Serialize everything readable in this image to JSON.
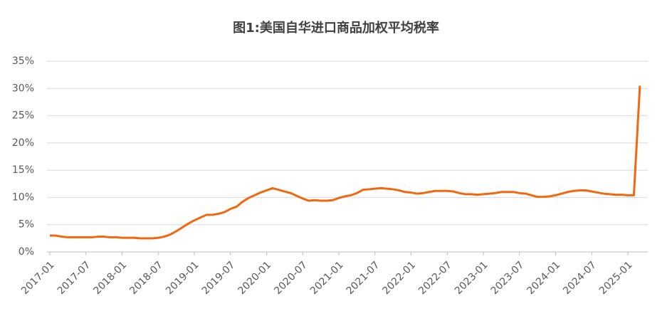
{
  "chart_data": {
    "type": "line",
    "title": "图1:美国自华进口商品加权平均税率",
    "x": [
      "2017-01",
      "2017-02",
      "2017-03",
      "2017-04",
      "2017-05",
      "2017-06",
      "2017-07",
      "2017-08",
      "2017-09",
      "2017-10",
      "2017-11",
      "2017-12",
      "2018-01",
      "2018-02",
      "2018-03",
      "2018-04",
      "2018-05",
      "2018-06",
      "2018-07",
      "2018-08",
      "2018-09",
      "2018-10",
      "2018-11",
      "2018-12",
      "2019-01",
      "2019-02",
      "2019-03",
      "2019-04",
      "2019-05",
      "2019-06",
      "2019-07",
      "2019-08",
      "2019-09",
      "2019-10",
      "2019-11",
      "2019-12",
      "2020-01",
      "2020-02",
      "2020-03",
      "2020-04",
      "2020-05",
      "2020-06",
      "2020-07",
      "2020-08",
      "2020-09",
      "2020-10",
      "2020-11",
      "2020-12",
      "2021-01",
      "2021-02",
      "2021-03",
      "2021-04",
      "2021-05",
      "2021-06",
      "2021-07",
      "2021-08",
      "2021-09",
      "2021-10",
      "2021-11",
      "2021-12",
      "2022-01",
      "2022-02",
      "2022-03",
      "2022-04",
      "2022-05",
      "2022-06",
      "2022-07",
      "2022-08",
      "2022-09",
      "2022-10",
      "2022-11",
      "2022-12",
      "2023-01",
      "2023-02",
      "2023-03",
      "2023-04",
      "2023-05",
      "2023-06",
      "2023-07",
      "2023-08",
      "2023-09",
      "2023-10",
      "2023-11",
      "2023-12",
      "2024-01",
      "2024-02",
      "2024-03",
      "2024-04",
      "2024-05",
      "2024-06",
      "2024-07",
      "2024-08",
      "2024-09",
      "2024-10",
      "2024-11",
      "2024-12",
      "2025-01",
      "2025-02",
      "2025-03"
    ],
    "series": [
      {
        "name": "加权平均税率",
        "color": "#f0690f",
        "values": [
          3.0,
          3.0,
          2.8,
          2.7,
          2.7,
          2.7,
          2.7,
          2.7,
          2.8,
          2.8,
          2.7,
          2.7,
          2.6,
          2.6,
          2.6,
          2.5,
          2.5,
          2.5,
          2.6,
          2.8,
          3.2,
          3.8,
          4.5,
          5.2,
          5.8,
          6.3,
          6.8,
          6.8,
          7.0,
          7.3,
          7.9,
          8.3,
          9.2,
          9.9,
          10.4,
          10.9,
          11.3,
          11.7,
          11.4,
          11.1,
          10.8,
          10.3,
          9.8,
          9.4,
          9.5,
          9.4,
          9.4,
          9.5,
          9.9,
          10.2,
          10.4,
          10.8,
          11.4,
          11.5,
          11.6,
          11.7,
          11.6,
          11.5,
          11.3,
          11.0,
          10.9,
          10.7,
          10.8,
          11.0,
          11.2,
          11.2,
          11.2,
          11.1,
          10.8,
          10.6,
          10.6,
          10.5,
          10.6,
          10.7,
          10.8,
          11.0,
          11.0,
          11.0,
          10.8,
          10.7,
          10.4,
          10.1,
          10.1,
          10.2,
          10.4,
          10.7,
          11.0,
          11.2,
          11.3,
          11.3,
          11.1,
          10.9,
          10.7,
          10.6,
          10.5,
          10.5,
          10.4,
          10.4,
          30.5
        ]
      }
    ],
    "xticks": [
      "2017-01",
      "2017-07",
      "2018-01",
      "2018-07",
      "2019-01",
      "2019-07",
      "2020-01",
      "2020-07",
      "2021-01",
      "2021-07",
      "2022-01",
      "2022-07",
      "2023-01",
      "2023-07",
      "2024-01",
      "2024-07",
      "2025-01"
    ],
    "ylim": [
      0,
      35
    ],
    "yticks": [
      {
        "value": 0,
        "label": "0%"
      },
      {
        "value": 5,
        "label": "5%"
      },
      {
        "value": 10,
        "label": "10%"
      },
      {
        "value": 15,
        "label": "15%"
      },
      {
        "value": 20,
        "label": "20%"
      },
      {
        "value": 25,
        "label": "25%"
      },
      {
        "value": 30,
        "label": "30%"
      },
      {
        "value": 35,
        "label": "35%"
      }
    ],
    "grid": true
  }
}
